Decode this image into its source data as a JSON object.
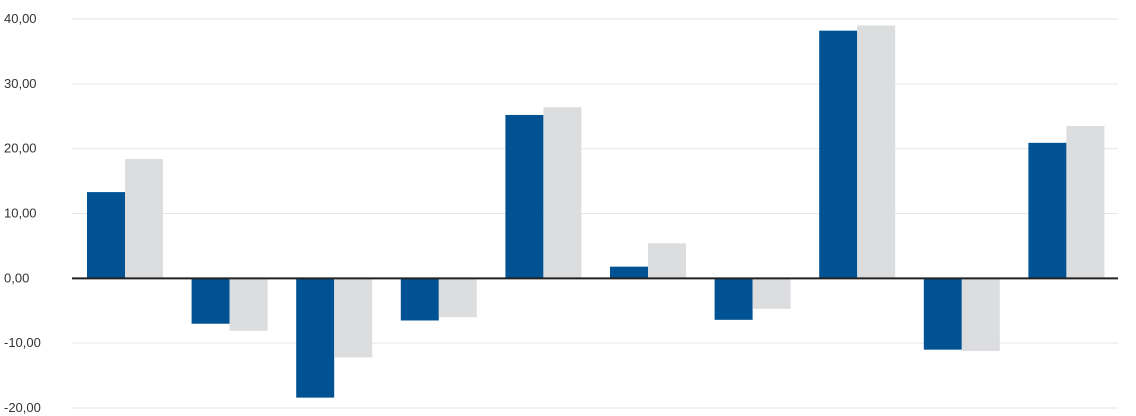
{
  "chart_data": {
    "type": "bar",
    "categories": [
      "",
      "",
      "",
      "",
      "",
      "",
      "",
      "",
      "",
      ""
    ],
    "series": [
      {
        "values": [
          13.3,
          -7.0,
          -18.4,
          -6.5,
          25.2,
          1.8,
          -6.4,
          38.2,
          -11.0,
          20.9
        ]
      },
      {
        "values": [
          18.4,
          -8.1,
          -12.2,
          -6.0,
          26.4,
          5.4,
          -4.7,
          39.0,
          -11.2,
          23.5
        ]
      }
    ],
    "yticks": [
      "-20,00",
      "-10,00",
      "0,00",
      "10,00",
      "20,00",
      "30,00",
      "40,00"
    ],
    "ylim": [
      -20,
      40
    ],
    "grid": true,
    "colors": [
      "#005293",
      "#dcdddf"
    ]
  }
}
